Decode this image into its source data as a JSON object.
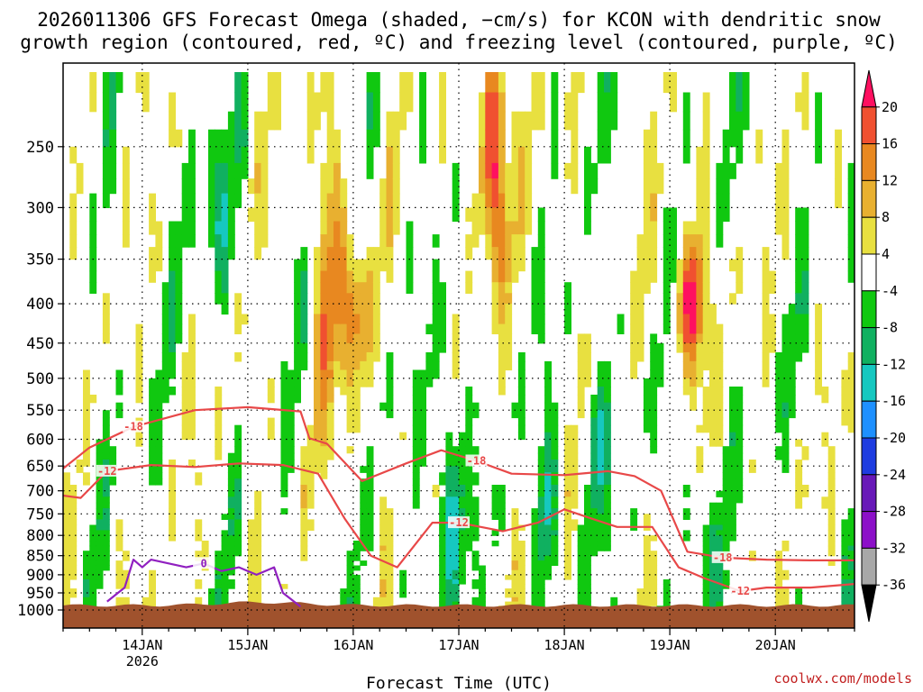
{
  "title_line1": "2026011306 GFS Forecast Omega (shaded, −cm/s) for KCON with dendritic snow",
  "title_line2": "growth region (contoured, red, ºC) and freezing level (contoured, purple, ºC)",
  "credit": "coolwx.com/models",
  "chart_data": {
    "type": "heatmap",
    "title": "2026011306 GFS Forecast Omega (shaded, −cm/s) for KCON with dendritic snow growth region (contoured, red, ºC) and freezing level (contoured, purple, ºC)",
    "xlabel": "Forecast Time (UTC)",
    "ylabel": "",
    "x_unit": "hours since 13 Jan 06 UTC",
    "xlim": [
      0,
      180
    ],
    "ylim_hPa": [
      1000,
      200
    ],
    "y_scale": "log-pressure",
    "y_ticks": [
      250,
      300,
      350,
      400,
      450,
      500,
      550,
      600,
      650,
      700,
      750,
      800,
      850,
      900,
      950,
      1000
    ],
    "x_ticks": [
      {
        "hour": 18,
        "label": "14JAN",
        "sub": "2026"
      },
      {
        "hour": 42,
        "label": "15JAN",
        "sub": ""
      },
      {
        "hour": 66,
        "label": "16JAN",
        "sub": ""
      },
      {
        "hour": 90,
        "label": "17JAN",
        "sub": ""
      },
      {
        "hour": 114,
        "label": "18JAN",
        "sub": ""
      },
      {
        "hour": 138,
        "label": "19JAN",
        "sub": ""
      },
      {
        "hour": 162,
        "label": "20JAN",
        "sub": ""
      }
    ],
    "colorbar": {
      "levels": [
        -36,
        -32,
        -28,
        -24,
        -20,
        -16,
        -12,
        -8,
        -4,
        4,
        8,
        12,
        16,
        20
      ],
      "colors": [
        "#000000",
        "#a8a8a8",
        "#8c10c8",
        "#6818b8",
        "#1e3ce0",
        "#1e90ff",
        "#16c8c0",
        "#10b060",
        "#10c810",
        "#ffffff",
        "#e8e040",
        "#e8b030",
        "#e88820",
        "#f05030",
        "#ff1060"
      ],
      "top_color": "#ff1060",
      "bottom_color": "#000000"
    },
    "omega_features": [
      {
        "t": 35,
        "p0": 350,
        "p1": 250,
        "v": -10
      },
      {
        "t": 60,
        "p0": 500,
        "p1": 250,
        "v": 12
      },
      {
        "t": 66,
        "p0": 480,
        "p1": 350,
        "v": 16
      },
      {
        "t": 88,
        "p0": 900,
        "p1": 560,
        "v": -14
      },
      {
        "t": 98,
        "p0": 330,
        "p1": 200,
        "v": 22
      },
      {
        "t": 110,
        "p0": 900,
        "p1": 650,
        "v": -10
      },
      {
        "t": 121,
        "p0": 700,
        "p1": 500,
        "v": -8
      },
      {
        "t": 143,
        "p0": 450,
        "p1": 350,
        "v": 22
      },
      {
        "t": 145,
        "p0": 900,
        "p1": 720,
        "v": -10
      }
    ],
    "series": [
      {
        "name": "-18",
        "kind": "isotherm",
        "x": [
          0,
          6,
          16,
          30,
          42,
          54,
          56,
          60,
          68,
          78,
          86,
          94,
          102,
          114,
          124,
          130,
          136,
          142,
          150,
          160,
          170,
          180
        ],
        "y": [
          655,
          615,
          578,
          550,
          545,
          552,
          598,
          608,
          680,
          645,
          620,
          640,
          665,
          668,
          660,
          670,
          700,
          840,
          855,
          860,
          862,
          862
        ]
      },
      {
        "name": "-12",
        "kind": "isotherm",
        "x": [
          0,
          4,
          10,
          20,
          30,
          40,
          50,
          58,
          64,
          70,
          76,
          84,
          90,
          100,
          108,
          114,
          120,
          126,
          134,
          140,
          146,
          154,
          160,
          170,
          180
        ],
        "y": [
          710,
          715,
          660,
          648,
          652,
          645,
          648,
          665,
          760,
          850,
          880,
          770,
          770,
          790,
          770,
          740,
          760,
          780,
          780,
          880,
          910,
          945,
          935,
          935,
          925
        ]
      },
      {
        "name": "0",
        "kind": "freezing",
        "x": [
          10,
          14,
          16,
          18,
          20,
          24,
          28,
          32,
          36,
          40,
          44,
          48,
          50,
          54
        ],
        "y": [
          975,
          935,
          860,
          880,
          860,
          870,
          880,
          870,
          890,
          880,
          900,
          880,
          950,
          990
        ]
      }
    ]
  }
}
